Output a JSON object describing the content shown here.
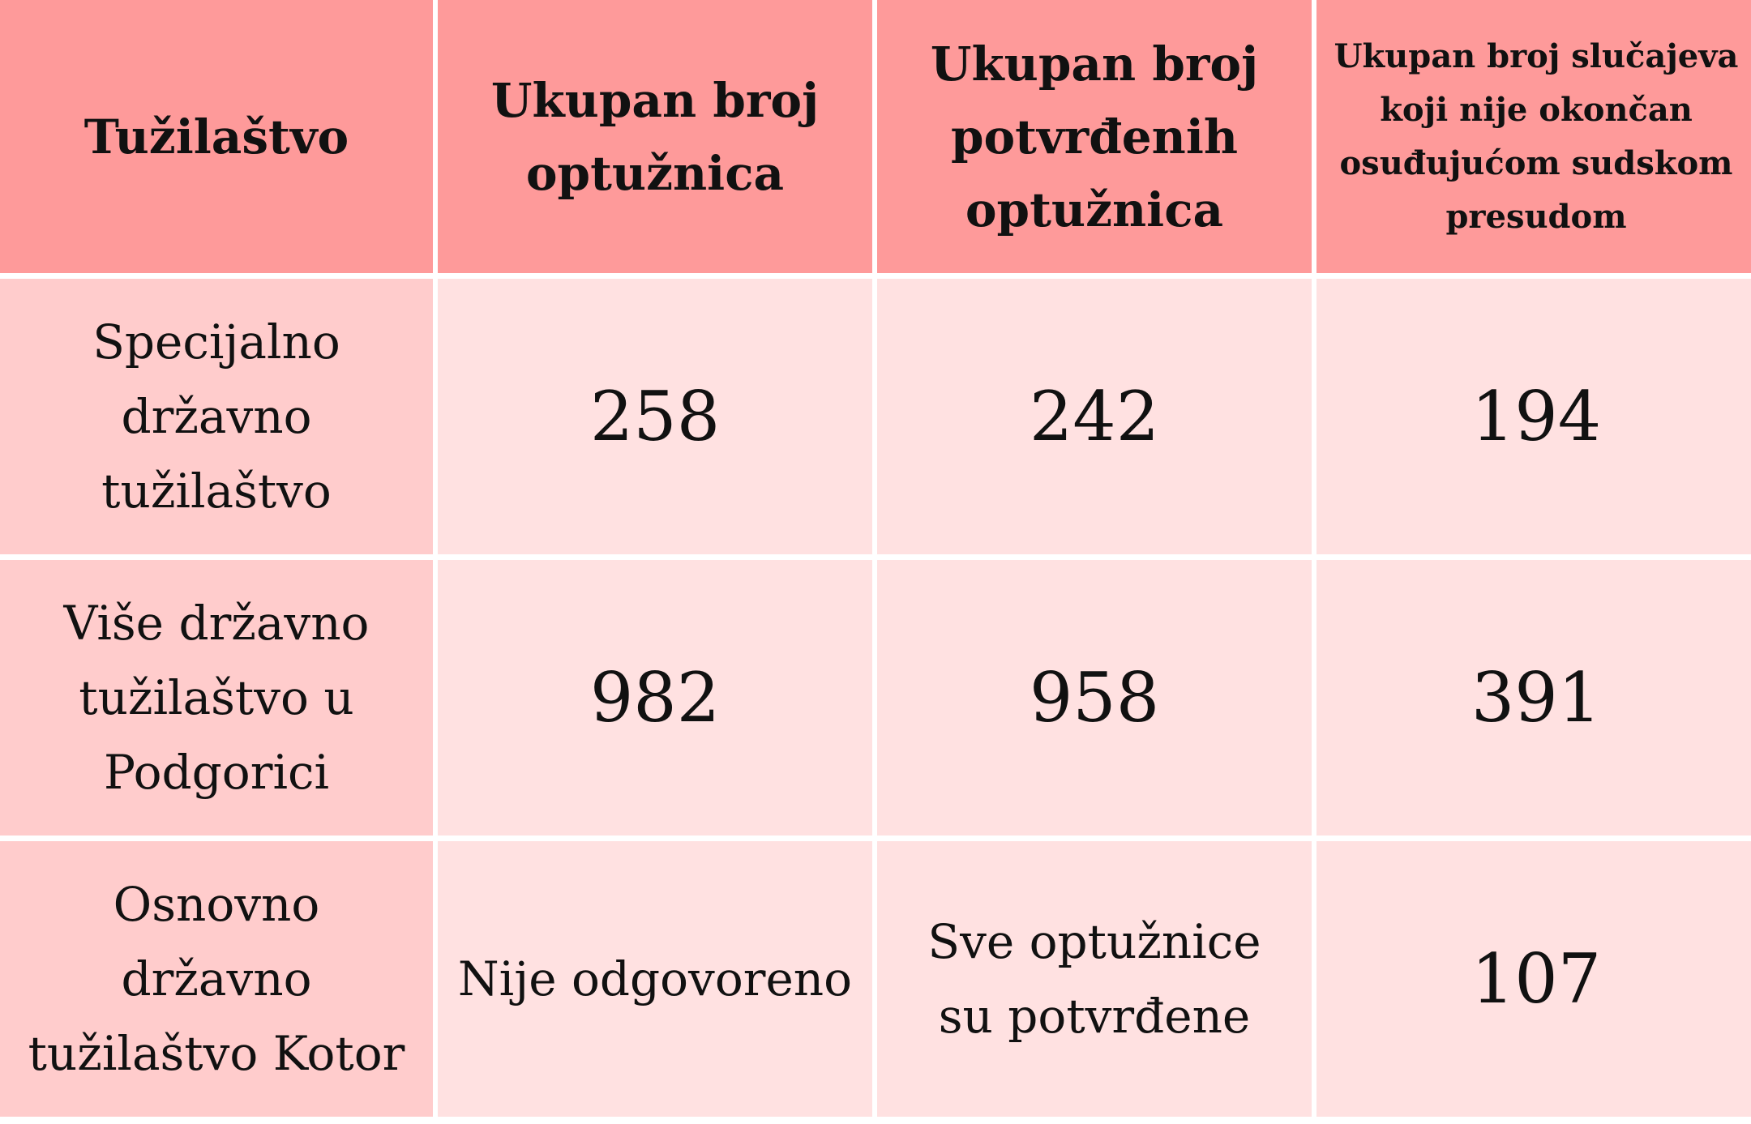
{
  "headers": [
    "Tužilaštvo",
    "Ukupan broj optužnica",
    "Ukupan broj potvrđenih optužnica",
    "Ukupan broj slučajeva koji nije okončan osuđujućom sudskom presudom"
  ],
  "rows": [
    {
      "prosecutor": "Specijalno državno tužilaštvo",
      "total_indictments": "258",
      "confirmed_indictments": "242",
      "not_convicted_cases": "194"
    },
    {
      "prosecutor": "Više državno tužilaštvo u Podgorici",
      "total_indictments": "982",
      "confirmed_indictments": "958",
      "not_convicted_cases": "391"
    },
    {
      "prosecutor": "Osnovno državno tužilaštvo Kotor",
      "total_indictments": "Nije odgovoreno",
      "confirmed_indictments": "Sve optužnice su potvrđene",
      "not_convicted_cases": "107"
    }
  ],
  "colors": {
    "header_bg": "#fe9a9a",
    "row_label_bg": "#ffcccc",
    "cell_bg": "#ffe1e1",
    "grid_lines": "#ffffff"
  }
}
